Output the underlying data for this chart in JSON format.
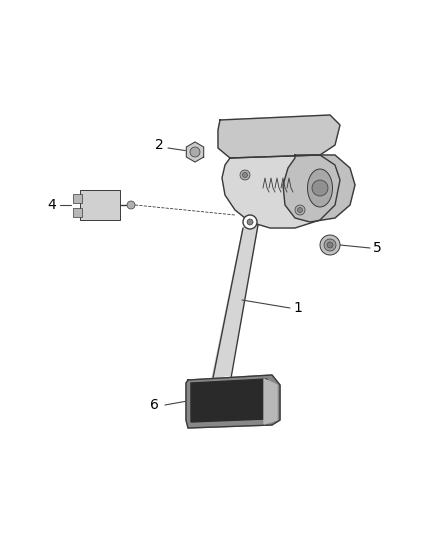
{
  "bg_color": "#ffffff",
  "line_color": "#3a3a3a",
  "dark_color": "#1a1a1a",
  "label_color": "#000000",
  "figsize": [
    4.38,
    5.33
  ],
  "dpi": 100,
  "housing": {
    "main_fill": "#e0e0e0",
    "top_plate_fill": "#c8c8c8",
    "right_plate_fill": "#b8b8b8"
  },
  "pedal": {
    "arm_fill": "#d8d8d8",
    "pad_fill": "#2a2a2a",
    "pad_highlight": "#aaaaaa"
  }
}
